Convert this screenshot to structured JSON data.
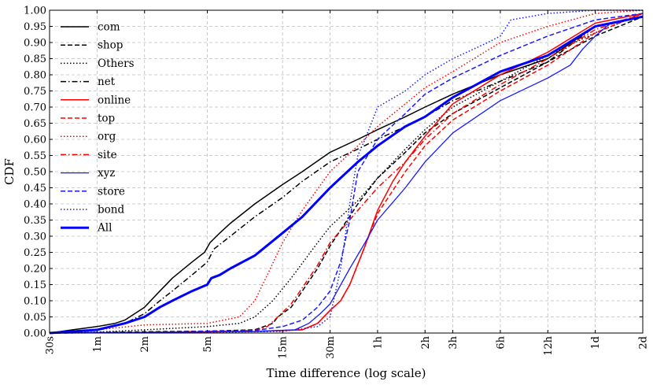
{
  "chart_data": {
    "type": "line",
    "title": "",
    "xlabel": "Time difference (log scale)",
    "ylabel": "CDF",
    "x_scale": "log",
    "x_unit": "minutes",
    "xlim": [
      0.5,
      2880
    ],
    "ylim": [
      0,
      1
    ],
    "grid": true,
    "legend_position": "top-left",
    "x_ticks": [
      {
        "label": "30s",
        "value": 0.5
      },
      {
        "label": "1m",
        "value": 1
      },
      {
        "label": "2m",
        "value": 2
      },
      {
        "label": "5m",
        "value": 5
      },
      {
        "label": "15m",
        "value": 15
      },
      {
        "label": "30m",
        "value": 30
      },
      {
        "label": "1h",
        "value": 60
      },
      {
        "label": "2h",
        "value": 120
      },
      {
        "label": "3h",
        "value": 180
      },
      {
        "label": "6h",
        "value": 360
      },
      {
        "label": "12h",
        "value": 720
      },
      {
        "label": "1d",
        "value": 1440
      },
      {
        "label": "2d",
        "value": 2880
      }
    ],
    "y_ticks": [
      "0.00",
      "0.05",
      "0.10",
      "0.15",
      "0.20",
      "0.25",
      "0.30",
      "0.35",
      "0.40",
      "0.45",
      "0.50",
      "0.55",
      "0.60",
      "0.65",
      "0.70",
      "0.75",
      "0.80",
      "0.85",
      "0.90",
      "0.95",
      "1.00"
    ],
    "series": [
      {
        "name": "com",
        "color": "#000000",
        "style": "solid",
        "width": 1.5,
        "points": [
          [
            0.5,
            0
          ],
          [
            0.7,
            0.01
          ],
          [
            1,
            0.02
          ],
          [
            1.3,
            0.03
          ],
          [
            1.5,
            0.04
          ],
          [
            2,
            0.08
          ],
          [
            2.5,
            0.13
          ],
          [
            3,
            0.17
          ],
          [
            4,
            0.22
          ],
          [
            4.8,
            0.25
          ],
          [
            5.2,
            0.28
          ],
          [
            6,
            0.31
          ],
          [
            7,
            0.34
          ],
          [
            10,
            0.4
          ],
          [
            15,
            0.46
          ],
          [
            20,
            0.5
          ],
          [
            30,
            0.56
          ],
          [
            45,
            0.6
          ],
          [
            60,
            0.63
          ],
          [
            90,
            0.67
          ],
          [
            120,
            0.7
          ],
          [
            180,
            0.74
          ],
          [
            360,
            0.8
          ],
          [
            720,
            0.85
          ],
          [
            1440,
            0.95
          ],
          [
            2880,
            0.98
          ]
        ]
      },
      {
        "name": "shop",
        "color": "#000000",
        "style": "dashed",
        "width": 1.5,
        "points": [
          [
            0.5,
            0
          ],
          [
            1,
            0.002
          ],
          [
            2,
            0.004
          ],
          [
            5,
            0.006
          ],
          [
            10,
            0.01
          ],
          [
            13,
            0.03
          ],
          [
            14,
            0.05
          ],
          [
            17,
            0.08
          ],
          [
            20,
            0.13
          ],
          [
            25,
            0.2
          ],
          [
            30,
            0.27
          ],
          [
            45,
            0.4
          ],
          [
            60,
            0.48
          ],
          [
            90,
            0.56
          ],
          [
            120,
            0.62
          ],
          [
            180,
            0.68
          ],
          [
            360,
            0.76
          ],
          [
            720,
            0.84
          ],
          [
            1440,
            0.92
          ],
          [
            2880,
            0.98
          ]
        ]
      },
      {
        "name": "Others",
        "color": "#000000",
        "style": "dotted",
        "width": 1.5,
        "points": [
          [
            0.5,
            0
          ],
          [
            1,
            0.003
          ],
          [
            2,
            0.01
          ],
          [
            5,
            0.02
          ],
          [
            8,
            0.03
          ],
          [
            10,
            0.05
          ],
          [
            13,
            0.1
          ],
          [
            17,
            0.17
          ],
          [
            25,
            0.28
          ],
          [
            30,
            0.33
          ],
          [
            45,
            0.41
          ],
          [
            60,
            0.48
          ],
          [
            90,
            0.57
          ],
          [
            120,
            0.63
          ],
          [
            180,
            0.7
          ],
          [
            360,
            0.78
          ],
          [
            720,
            0.86
          ],
          [
            1440,
            0.93
          ],
          [
            2880,
            0.99
          ]
        ]
      },
      {
        "name": "net",
        "color": "#000000",
        "style": "dashdot",
        "width": 1.5,
        "points": [
          [
            0.5,
            0
          ],
          [
            0.7,
            0.005
          ],
          [
            1,
            0.01
          ],
          [
            1.5,
            0.03
          ],
          [
            2,
            0.06
          ],
          [
            2.5,
            0.1
          ],
          [
            3,
            0.13
          ],
          [
            4,
            0.18
          ],
          [
            5,
            0.22
          ],
          [
            5.5,
            0.26
          ],
          [
            7,
            0.3
          ],
          [
            10,
            0.36
          ],
          [
            15,
            0.42
          ],
          [
            20,
            0.47
          ],
          [
            30,
            0.53
          ],
          [
            45,
            0.57
          ],
          [
            60,
            0.6
          ],
          [
            90,
            0.64
          ],
          [
            120,
            0.67
          ],
          [
            180,
            0.72
          ],
          [
            360,
            0.78
          ],
          [
            720,
            0.84
          ],
          [
            1440,
            0.95
          ],
          [
            2880,
            0.98
          ]
        ]
      },
      {
        "name": "online",
        "color": "#ff0000",
        "style": "solid",
        "width": 1.5,
        "points": [
          [
            0.5,
            0
          ],
          [
            2,
            0.002
          ],
          [
            10,
            0.005
          ],
          [
            20,
            0.01
          ],
          [
            25,
            0.03
          ],
          [
            30,
            0.07
          ],
          [
            35,
            0.1
          ],
          [
            40,
            0.15
          ],
          [
            50,
            0.27
          ],
          [
            60,
            0.38
          ],
          [
            75,
            0.47
          ],
          [
            90,
            0.53
          ],
          [
            120,
            0.61
          ],
          [
            180,
            0.71
          ],
          [
            360,
            0.8
          ],
          [
            720,
            0.87
          ],
          [
            1440,
            0.96
          ],
          [
            2880,
            0.99
          ]
        ]
      },
      {
        "name": "top",
        "color": "#ff0000",
        "style": "dashed",
        "width": 1.5,
        "points": [
          [
            0.5,
            0
          ],
          [
            2,
            0.002
          ],
          [
            10,
            0.005
          ],
          [
            20,
            0.01
          ],
          [
            25,
            0.03
          ],
          [
            30,
            0.07
          ],
          [
            35,
            0.1
          ],
          [
            40,
            0.15
          ],
          [
            50,
            0.27
          ],
          [
            60,
            0.37
          ],
          [
            90,
            0.5
          ],
          [
            120,
            0.58
          ],
          [
            180,
            0.66
          ],
          [
            360,
            0.75
          ],
          [
            720,
            0.83
          ],
          [
            1440,
            0.93
          ],
          [
            2880,
            0.99
          ]
        ]
      },
      {
        "name": "org",
        "color": "#ff0000",
        "style": "dotted",
        "width": 1.5,
        "points": [
          [
            0.5,
            0
          ],
          [
            1,
            0.01
          ],
          [
            2,
            0.025
          ],
          [
            5,
            0.03
          ],
          [
            8,
            0.05
          ],
          [
            10,
            0.1
          ],
          [
            12,
            0.18
          ],
          [
            15,
            0.28
          ],
          [
            20,
            0.38
          ],
          [
            30,
            0.5
          ],
          [
            45,
            0.58
          ],
          [
            60,
            0.64
          ],
          [
            90,
            0.71
          ],
          [
            120,
            0.76
          ],
          [
            180,
            0.81
          ],
          [
            360,
            0.9
          ],
          [
            720,
            0.95
          ],
          [
            1440,
            0.99
          ],
          [
            2880,
            1.0
          ]
        ]
      },
      {
        "name": "site",
        "color": "#ff0000",
        "style": "dashdot",
        "width": 1.5,
        "points": [
          [
            0.5,
            0
          ],
          [
            2,
            0.002
          ],
          [
            5,
            0.005
          ],
          [
            10,
            0.008
          ],
          [
            12,
            0.02
          ],
          [
            14,
            0.05
          ],
          [
            17,
            0.09
          ],
          [
            20,
            0.14
          ],
          [
            25,
            0.21
          ],
          [
            30,
            0.28
          ],
          [
            45,
            0.38
          ],
          [
            60,
            0.45
          ],
          [
            90,
            0.53
          ],
          [
            120,
            0.6
          ],
          [
            180,
            0.68
          ],
          [
            360,
            0.77
          ],
          [
            720,
            0.85
          ],
          [
            1440,
            0.94
          ],
          [
            2880,
            0.99
          ]
        ]
      },
      {
        "name": "xyz",
        "color": "#1a1aff",
        "style": "solid",
        "width": 1.3,
        "points": [
          [
            0.5,
            0
          ],
          [
            2,
            0.002
          ],
          [
            10,
            0.005
          ],
          [
            18,
            0.01
          ],
          [
            22,
            0.03
          ],
          [
            26,
            0.06
          ],
          [
            30,
            0.09
          ],
          [
            40,
            0.2
          ],
          [
            50,
            0.28
          ],
          [
            60,
            0.35
          ],
          [
            90,
            0.45
          ],
          [
            120,
            0.53
          ],
          [
            180,
            0.62
          ],
          [
            360,
            0.72
          ],
          [
            720,
            0.79
          ],
          [
            1000,
            0.83
          ],
          [
            1200,
            0.88
          ],
          [
            1440,
            0.92
          ],
          [
            1800,
            0.96
          ],
          [
            2880,
            0.98
          ]
        ]
      },
      {
        "name": "store",
        "color": "#1a1aff",
        "style": "dashed",
        "width": 1.5,
        "points": [
          [
            0.5,
            0
          ],
          [
            2,
            0.002
          ],
          [
            10,
            0.008
          ],
          [
            15,
            0.02
          ],
          [
            20,
            0.04
          ],
          [
            25,
            0.08
          ],
          [
            30,
            0.13
          ],
          [
            35,
            0.22
          ],
          [
            40,
            0.35
          ],
          [
            45,
            0.5
          ],
          [
            60,
            0.6
          ],
          [
            90,
            0.68
          ],
          [
            120,
            0.74
          ],
          [
            180,
            0.79
          ],
          [
            360,
            0.86
          ],
          [
            720,
            0.92
          ],
          [
            1440,
            0.97
          ],
          [
            2880,
            0.99
          ]
        ]
      },
      {
        "name": "bond",
        "color": "#1a1aff",
        "style": "dotted",
        "width": 1.5,
        "points": [
          [
            0.5,
            0
          ],
          [
            5,
            0.002
          ],
          [
            15,
            0.005
          ],
          [
            25,
            0.02
          ],
          [
            30,
            0.05
          ],
          [
            35,
            0.2
          ],
          [
            40,
            0.4
          ],
          [
            45,
            0.55
          ],
          [
            50,
            0.6
          ],
          [
            60,
            0.7
          ],
          [
            90,
            0.75
          ],
          [
            120,
            0.8
          ],
          [
            180,
            0.85
          ],
          [
            300,
            0.9
          ],
          [
            360,
            0.92
          ],
          [
            420,
            0.97
          ],
          [
            720,
            0.99
          ],
          [
            1440,
            1.0
          ],
          [
            2880,
            1.0
          ]
        ]
      },
      {
        "name": "All",
        "color": "#0000ff",
        "style": "solid",
        "width": 3,
        "points": [
          [
            0.5,
            0
          ],
          [
            0.7,
            0.005
          ],
          [
            1,
            0.01
          ],
          [
            1.5,
            0.03
          ],
          [
            2,
            0.05
          ],
          [
            2.5,
            0.08
          ],
          [
            3,
            0.1
          ],
          [
            4,
            0.13
          ],
          [
            5,
            0.15
          ],
          [
            5.3,
            0.17
          ],
          [
            6,
            0.18
          ],
          [
            7,
            0.2
          ],
          [
            10,
            0.24
          ],
          [
            15,
            0.31
          ],
          [
            20,
            0.36
          ],
          [
            30,
            0.45
          ],
          [
            45,
            0.53
          ],
          [
            60,
            0.58
          ],
          [
            90,
            0.64
          ],
          [
            120,
            0.67
          ],
          [
            180,
            0.73
          ],
          [
            360,
            0.81
          ],
          [
            720,
            0.86
          ],
          [
            1440,
            0.95
          ],
          [
            2880,
            0.98
          ]
        ]
      }
    ]
  }
}
